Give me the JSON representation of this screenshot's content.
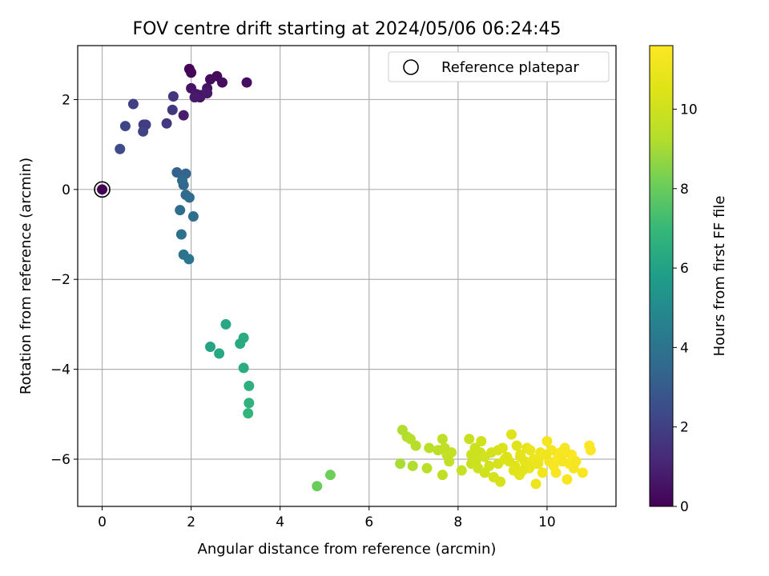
{
  "chart_data": {
    "type": "scatter",
    "title": "FOV centre drift starting at 2024/05/06 06:24:45",
    "xlabel": "Angular distance from reference (arcmin)",
    "ylabel": "Rotation from reference (arcmin)",
    "xlim": [
      -0.55,
      11.55
    ],
    "ylim": [
      -7.05,
      3.2
    ],
    "xticks": [
      0,
      2,
      4,
      6,
      8,
      10
    ],
    "yticks": [
      -6,
      -4,
      -2,
      0,
      2
    ],
    "grid": true,
    "legend": {
      "placement": "top-right",
      "entries": [
        "Reference platepar"
      ]
    },
    "colorbar": {
      "label": "Hours from first FF file",
      "range": [
        0,
        11.6
      ],
      "ticks": [
        0,
        2,
        4,
        6,
        8,
        10
      ],
      "colormap": "viridis"
    },
    "reference_point": {
      "x": 0,
      "y": 0,
      "hours": 0
    },
    "series": [
      {
        "x": [
          1.96,
          2.0,
          2.58,
          2.43,
          2.7,
          3.25,
          2.2,
          2.36,
          2.0,
          2.12,
          2.23,
          2.36,
          2.08,
          1.83,
          0.7,
          1.6,
          1.58,
          0.52,
          0.93,
          0.98,
          1.45,
          0.92,
          0.4,
          1.68,
          1.88,
          1.83,
          1.8,
          1.88,
          1.96,
          1.75,
          2.05,
          1.78,
          1.83,
          1.95,
          2.78,
          3.18,
          3.1,
          2.43,
          2.63,
          3.18,
          3.3,
          3.3,
          3.28,
          4.83,
          5.13,
          6.7,
          6.75,
          6.85,
          6.93,
          7.05,
          6.98,
          7.3,
          7.35,
          7.55,
          7.65,
          7.7,
          7.75,
          7.8,
          7.85,
          7.65,
          8.08,
          8.25,
          8.3,
          8.38,
          8.45,
          8.52,
          8.3,
          8.4,
          8.5,
          8.6,
          8.7,
          8.75,
          8.8,
          8.9,
          8.95,
          9.0,
          9.1,
          9.15,
          9.2,
          9.28,
          9.32,
          9.38,
          9.4,
          9.5,
          9.55,
          9.6,
          9.62,
          9.7,
          9.75,
          9.8,
          9.85,
          9.9,
          9.95,
          10.0,
          10.05,
          10.1,
          10.15,
          10.2,
          10.25,
          10.3,
          10.4,
          10.45,
          10.5,
          10.55,
          10.6,
          10.65,
          10.8,
          10.95,
          10.98,
          9.25,
          9.4,
          9.8,
          10.3,
          8.6,
          8.9,
          9.05,
          9.45,
          9.75,
          9.98,
          10.35,
          10.42
        ],
        "y": [
          2.68,
          2.6,
          2.52,
          2.45,
          2.38,
          2.38,
          2.05,
          2.25,
          2.25,
          2.12,
          2.1,
          2.14,
          2.05,
          1.65,
          1.9,
          2.07,
          1.77,
          1.41,
          1.44,
          1.44,
          1.47,
          1.29,
          0.9,
          0.38,
          0.35,
          0.1,
          0.2,
          -0.12,
          -0.18,
          -0.46,
          -0.6,
          -1.0,
          -1.45,
          -1.55,
          -3.0,
          -3.3,
          -3.43,
          -3.5,
          -3.65,
          -3.97,
          -4.37,
          -4.75,
          -4.98,
          -6.6,
          -6.35,
          -6.1,
          -5.35,
          -5.5,
          -5.55,
          -5.7,
          -6.15,
          -6.2,
          -5.75,
          -5.8,
          -5.55,
          -5.75,
          -5.9,
          -6.05,
          -5.85,
          -6.35,
          -6.25,
          -5.55,
          -5.9,
          -5.75,
          -6.2,
          -5.6,
          -6.1,
          -6.05,
          -5.85,
          -6.3,
          -6.15,
          -5.85,
          -6.4,
          -5.8,
          -6.5,
          -5.75,
          -5.95,
          -6.05,
          -5.45,
          -6.15,
          -5.7,
          -6.35,
          -5.9,
          -6.05,
          -5.75,
          -6.2,
          -5.8,
          -6.0,
          -6.55,
          -6.1,
          -5.85,
          -6.3,
          -5.9,
          -5.6,
          -6.05,
          -5.8,
          -6.15,
          -6.3,
          -5.95,
          -6.0,
          -5.75,
          -6.45,
          -6.1,
          -5.9,
          -6.2,
          -6.05,
          -6.3,
          -5.7,
          -5.8,
          -6.25,
          -5.95,
          -6.05,
          -5.85,
          -5.95,
          -6.1,
          -6.0,
          -6.25,
          -6.1,
          -5.9,
          -6.05,
          -5.85
        ],
        "hours": [
          0.1,
          0.15,
          0.25,
          0.3,
          0.35,
          0.4,
          0.45,
          0.5,
          0.55,
          0.6,
          0.65,
          0.7,
          0.75,
          0.8,
          2.0,
          1.6,
          1.7,
          2.2,
          1.9,
          1.85,
          1.75,
          2.1,
          2.4,
          3.3,
          3.4,
          3.5,
          3.55,
          3.6,
          3.65,
          3.7,
          3.8,
          3.9,
          4.0,
          4.1,
          6.2,
          6.4,
          6.3,
          6.1,
          6.2,
          6.45,
          6.6,
          6.7,
          6.8,
          8.0,
          8.1,
          9.1,
          9.2,
          9.25,
          9.3,
          9.35,
          9.2,
          9.4,
          9.45,
          9.5,
          9.55,
          9.6,
          9.65,
          9.7,
          9.75,
          9.6,
          9.8,
          9.85,
          9.9,
          9.95,
          10.0,
          10.05,
          9.9,
          9.95,
          10.0,
          10.05,
          10.1,
          10.15,
          10.2,
          10.25,
          10.3,
          10.35,
          10.4,
          10.45,
          10.5,
          10.55,
          10.6,
          10.65,
          10.7,
          10.75,
          10.8,
          10.85,
          10.9,
          10.95,
          11.0,
          11.05,
          11.1,
          11.15,
          11.2,
          11.25,
          11.3,
          11.35,
          11.4,
          11.45,
          11.5,
          11.55,
          11.4,
          11.45,
          11.5,
          11.55,
          11.3,
          11.35,
          11.45,
          11.55,
          11.5,
          10.6,
          10.7,
          11.0,
          11.4,
          10.1,
          10.3,
          10.4,
          10.7,
          10.9,
          11.1,
          11.3,
          11.35
        ]
      }
    ]
  }
}
